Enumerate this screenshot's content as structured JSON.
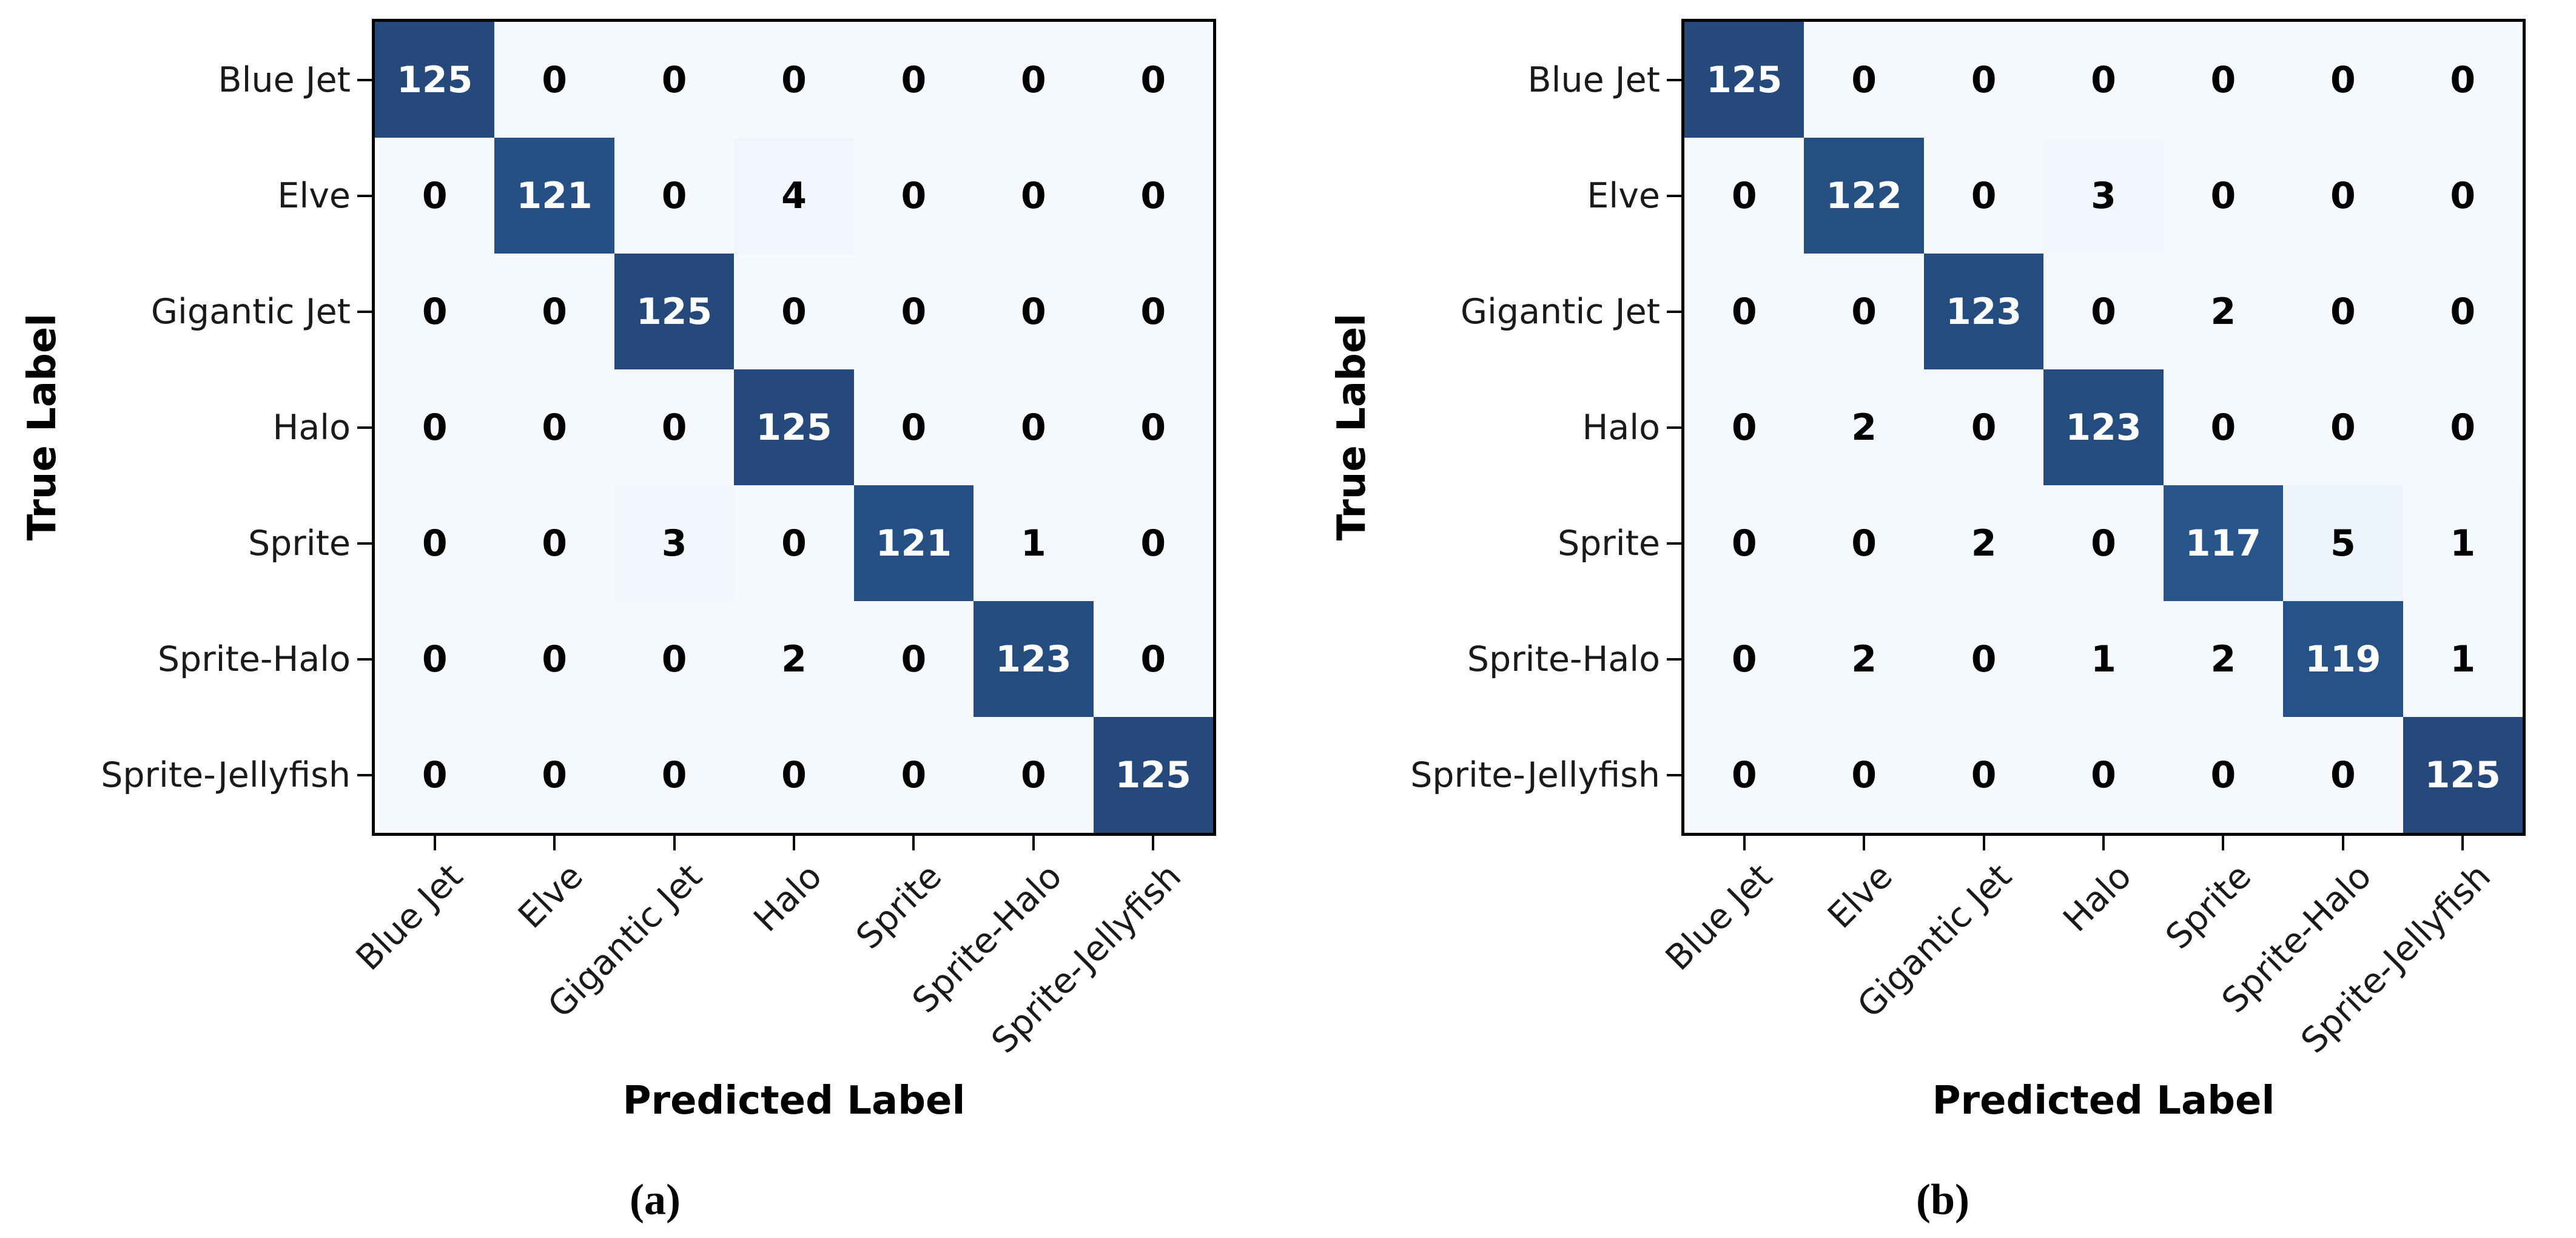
{
  "figure": {
    "background": "#ffffff",
    "description": "Two confusion matrices side by side"
  },
  "colors": {
    "cell_low": "#f6f9fd",
    "cell_high": "#24497a",
    "spine": "#000000",
    "tick": "#000000",
    "text_on_dark": "#ffffff",
    "text_on_light": "#000000",
    "tick_label": "#1a1a1a"
  },
  "chart_data": [
    {
      "type": "heatmap",
      "panel_caption": "(a)",
      "title": "",
      "xlabel": "Predicted Label",
      "ylabel": "True Label",
      "categories": [
        "Blue Jet",
        "Elve",
        "Gigantic Jet",
        "Halo",
        "Sprite",
        "Sprite-Halo",
        "Sprite-Jellyfish"
      ],
      "matrix": [
        [
          125,
          0,
          0,
          0,
          0,
          0,
          0
        ],
        [
          0,
          121,
          0,
          4,
          0,
          0,
          0
        ],
        [
          0,
          0,
          125,
          0,
          0,
          0,
          0
        ],
        [
          0,
          0,
          0,
          125,
          0,
          0,
          0
        ],
        [
          0,
          0,
          3,
          0,
          121,
          1,
          0
        ],
        [
          0,
          0,
          0,
          2,
          0,
          123,
          0
        ],
        [
          0,
          0,
          0,
          0,
          0,
          0,
          125
        ]
      ],
      "vmin": 0,
      "vmax": 125,
      "colormap": "Blues",
      "grid": false,
      "legend": "none",
      "x_tick_rotation": 45
    },
    {
      "type": "heatmap",
      "panel_caption": "(b)",
      "title": "",
      "xlabel": "Predicted Label",
      "ylabel": "True Label",
      "categories": [
        "Blue Jet",
        "Elve",
        "Gigantic Jet",
        "Halo",
        "Sprite",
        "Sprite-Halo",
        "Sprite-Jellyfish"
      ],
      "matrix": [
        [
          125,
          0,
          0,
          0,
          0,
          0,
          0
        ],
        [
          0,
          122,
          0,
          3,
          0,
          0,
          0
        ],
        [
          0,
          0,
          123,
          0,
          2,
          0,
          0
        ],
        [
          0,
          2,
          0,
          123,
          0,
          0,
          0
        ],
        [
          0,
          0,
          2,
          0,
          117,
          5,
          1
        ],
        [
          0,
          2,
          0,
          1,
          2,
          119,
          1
        ],
        [
          0,
          0,
          0,
          0,
          0,
          0,
          125
        ]
      ],
      "vmin": 0,
      "vmax": 125,
      "colormap": "Blues",
      "grid": false,
      "legend": "none",
      "x_tick_rotation": 45
    }
  ]
}
